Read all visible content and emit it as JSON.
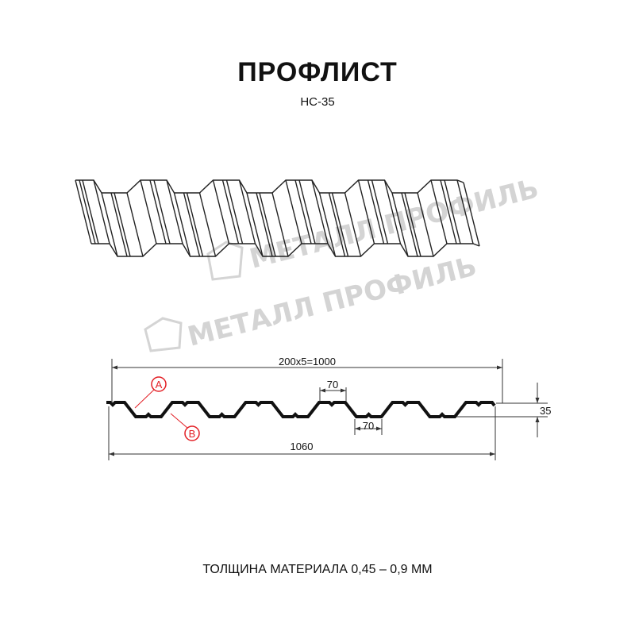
{
  "header": {
    "title": "ПРОФЛИСТ",
    "subtitle": "НС-35"
  },
  "watermark": {
    "text": "МЕТАЛЛ ПРОФИЛЬ"
  },
  "diagram": {
    "dimension_pitch": "200x5=1000",
    "dimension_top_flange": "70",
    "dimension_bottom_flange": "70",
    "dimension_total_width": "1060",
    "dimension_height": "35",
    "marker_a": "A",
    "marker_b": "B",
    "colors": {
      "profile": "#111111",
      "marker": "#e31e24",
      "watermark": "#d4d4d4"
    }
  },
  "footer": {
    "thickness": "ТОЛЩИНА МАТЕРИАЛА 0,45 – 0,9 ММ"
  }
}
